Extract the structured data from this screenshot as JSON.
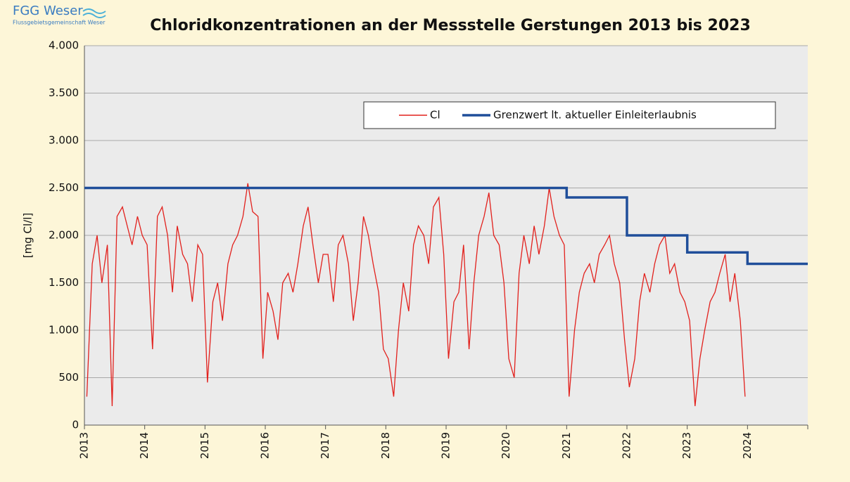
{
  "logo": {
    "name": "FGG Weser",
    "tagline": "Flussgebietsgemeinschaft Weser"
  },
  "chart_data": {
    "type": "line",
    "title": "Chloridkonzentrationen an der Messstelle Gerstungen 2013 bis 2023",
    "y_label": "[mg Cl/l]",
    "xlim": [
      2013,
      2025
    ],
    "xticks": [
      2013,
      2014,
      2015,
      2016,
      2017,
      2018,
      2019,
      2020,
      2021,
      2022,
      2023,
      2024
    ],
    "ylim": [
      0,
      4000
    ],
    "yticks": [
      0,
      500,
      {
        "value": 1000,
        "label": "1.000"
      },
      {
        "value": 1500,
        "label": "1.500"
      },
      {
        "value": 2000,
        "label": "2.000"
      },
      {
        "value": 2500,
        "label": "2.500"
      },
      {
        "value": 3000,
        "label": "3.000"
      },
      {
        "value": 3500,
        "label": "3.500"
      },
      {
        "value": 4000,
        "label": "4.000"
      }
    ],
    "grid": true,
    "legend": "top-right",
    "series": [
      {
        "name": "Cl",
        "color": "#e2201c",
        "x": [
          2013.04,
          2013.13,
          2013.21,
          2013.29,
          2013.38,
          2013.46,
          2013.54,
          2013.63,
          2013.71,
          2013.79,
          2013.88,
          2013.96,
          2014.04,
          2014.13,
          2014.21,
          2014.29,
          2014.38,
          2014.46,
          2014.54,
          2014.63,
          2014.71,
          2014.79,
          2014.88,
          2014.96,
          2015.04,
          2015.13,
          2015.21,
          2015.29,
          2015.38,
          2015.46,
          2015.54,
          2015.63,
          2015.71,
          2015.79,
          2015.88,
          2015.96,
          2016.04,
          2016.13,
          2016.21,
          2016.29,
          2016.38,
          2016.46,
          2016.54,
          2016.63,
          2016.71,
          2016.79,
          2016.88,
          2016.96,
          2017.04,
          2017.13,
          2017.21,
          2017.29,
          2017.38,
          2017.46,
          2017.54,
          2017.63,
          2017.71,
          2017.79,
          2017.88,
          2017.96,
          2018.04,
          2018.13,
          2018.21,
          2018.29,
          2018.38,
          2018.46,
          2018.54,
          2018.63,
          2018.71,
          2018.79,
          2018.88,
          2018.96,
          2019.04,
          2019.13,
          2019.21,
          2019.29,
          2019.38,
          2019.46,
          2019.54,
          2019.63,
          2019.71,
          2019.79,
          2019.88,
          2019.96,
          2020.04,
          2020.13,
          2020.21,
          2020.29,
          2020.38,
          2020.46,
          2020.54,
          2020.63,
          2020.71,
          2020.79,
          2020.88,
          2020.96,
          2021.04,
          2021.13,
          2021.21,
          2021.29,
          2021.38,
          2021.46,
          2021.54,
          2021.63,
          2021.71,
          2021.79,
          2021.88,
          2021.96,
          2022.04,
          2022.13,
          2022.21,
          2022.29,
          2022.38,
          2022.46,
          2022.54,
          2022.63,
          2022.71,
          2022.79,
          2022.88,
          2022.96,
          2023.04,
          2023.13,
          2023.21,
          2023.29,
          2023.38,
          2023.46,
          2023.54,
          2023.63,
          2023.71,
          2023.79,
          2023.88,
          2023.96
        ],
        "values": [
          300,
          1700,
          2000,
          1500,
          1900,
          200,
          2200,
          2300,
          2100,
          1900,
          2200,
          2000,
          1900,
          800,
          2200,
          2300,
          2000,
          1400,
          2100,
          1800,
          1700,
          1300,
          1900,
          1800,
          450,
          1300,
          1500,
          1100,
          1700,
          1900,
          2000,
          2200,
          2550,
          2250,
          2200,
          700,
          1400,
          1200,
          900,
          1500,
          1600,
          1400,
          1700,
          2100,
          2300,
          1900,
          1500,
          1800,
          1800,
          1300,
          1900,
          2000,
          1700,
          1100,
          1500,
          2200,
          2000,
          1700,
          1400,
          800,
          700,
          300,
          1000,
          1500,
          1200,
          1900,
          2100,
          2000,
          1700,
          2300,
          2400,
          1800,
          700,
          1300,
          1400,
          1900,
          800,
          1500,
          2000,
          2200,
          2450,
          2000,
          1900,
          1500,
          700,
          500,
          1600,
          2000,
          1700,
          2100,
          1800,
          2100,
          2500,
          2200,
          2000,
          1900,
          300,
          1000,
          1400,
          1600,
          1700,
          1500,
          1800,
          1900,
          2000,
          1700,
          1500,
          900,
          400,
          700,
          1300,
          1600,
          1400,
          1700,
          1900,
          2000,
          1600,
          1700,
          1400,
          1300,
          1100,
          200,
          700,
          1000,
          1300,
          1400,
          1600,
          1800,
          1300,
          1600,
          1100,
          300
        ]
      },
      {
        "name": "Grenzwert lt. aktueller Einleiterlaubnis",
        "color": "#1f4e9a",
        "x": [
          2013,
          2021,
          2021,
          2022,
          2022,
          2023,
          2023,
          2024,
          2024,
          2025
        ],
        "values": [
          2500,
          2500,
          2400,
          2400,
          2000,
          2000,
          1820,
          1820,
          1700,
          1700
        ]
      }
    ]
  }
}
